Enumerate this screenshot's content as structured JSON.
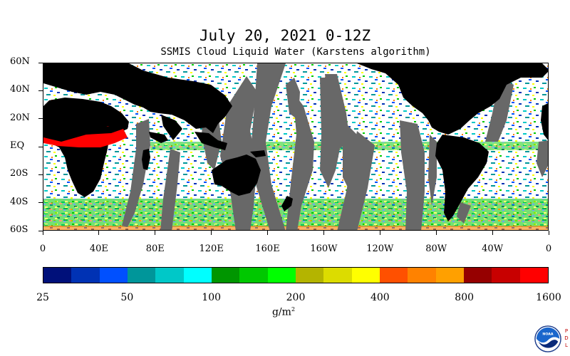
{
  "header": {
    "title": "July 20, 2021 0-12Z",
    "subtitle": "SSMIS Cloud Liquid Water (Karstens algorithm)"
  },
  "map": {
    "lat_labels": [
      "60N",
      "40N",
      "20N",
      "EQ",
      "20S",
      "40S",
      "60S"
    ],
    "lat_values": [
      60,
      40,
      20,
      0,
      -20,
      -40,
      -60
    ],
    "lat_range": [
      -60,
      60
    ],
    "lon_labels": [
      "0",
      "40E",
      "80E",
      "120E",
      "160E",
      "160W",
      "120W",
      "80W",
      "40W",
      "0"
    ],
    "lon_values": [
      0,
      40,
      80,
      120,
      160,
      200,
      240,
      280,
      320,
      360
    ],
    "lon_range": [
      0,
      360
    ],
    "land_color": "#000000",
    "no_data_color": "#686868",
    "clear_color": "#ffffff"
  },
  "colorbar": {
    "colors": [
      "#00107a",
      "#0032b4",
      "#0050ff",
      "#00969a",
      "#00c8c8",
      "#00ffff",
      "#009600",
      "#00c800",
      "#00ff00",
      "#b4b400",
      "#dcdc00",
      "#ffff00",
      "#ff5000",
      "#ff8200",
      "#ffa000",
      "#960000",
      "#c80000",
      "#ff0000"
    ],
    "tick_labels": [
      "25",
      "50",
      "100",
      "200",
      "400",
      "800",
      "1600"
    ],
    "units_base": "g/m",
    "units_sup": "2"
  },
  "logo": {
    "text": "NOAA",
    "side_letters": [
      "P",
      "D",
      "L"
    ]
  }
}
